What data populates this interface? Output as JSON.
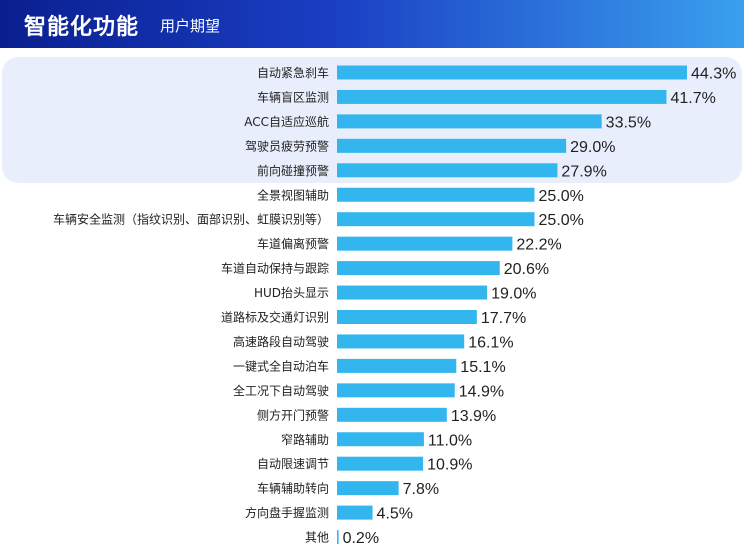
{
  "header": {
    "title": "智能化功能",
    "subtitle": "用户期望"
  },
  "colors": {
    "bar": "#33b6ee",
    "highlight_band": "#e8eefb",
    "header_start": "#0a1f8f",
    "header_end": "#3aa0ee"
  },
  "chart_data": {
    "type": "bar",
    "orientation": "horizontal",
    "title": "",
    "xlabel": "",
    "ylabel": "",
    "xlim": [
      0,
      44.3
    ],
    "grid": false,
    "legend": "none",
    "categories": [
      "自动紧急刹车",
      "车辆盲区监测",
      "ACC自适应巡航",
      "驾驶员疲劳预警",
      "前向碰撞预警",
      "全景视图辅助",
      "车辆安全监测（指纹识别、面部识别、虹膜识别等）",
      "车道偏离预警",
      "车道自动保持与跟踪",
      "HUD抬头显示",
      "道路标及交通灯识别",
      "高速路段自动驾驶",
      "一键式全自动泊车",
      "全工况下自动驾驶",
      "侧方开门预警",
      "窄路辅助",
      "自动限速调节",
      "车辆辅助转向",
      "方向盘手握监测",
      "其他"
    ],
    "values": [
      44.3,
      41.7,
      33.5,
      29.0,
      27.9,
      25.0,
      25.0,
      22.2,
      20.6,
      19.0,
      17.7,
      16.1,
      15.1,
      14.9,
      13.9,
      11.0,
      10.9,
      7.8,
      4.5,
      0.2
    ],
    "value_labels": [
      "44.3%",
      "41.7%",
      "33.5%",
      "29.0%",
      "27.9%",
      "25.0%",
      "25.0%",
      "22.2%",
      "20.6%",
      "19.0%",
      "17.7%",
      "16.1%",
      "15.1%",
      "14.9%",
      "13.9%",
      "11.0%",
      "10.9%",
      "7.8%",
      "4.5%",
      "0.2%"
    ],
    "highlighted_top_n": 5
  }
}
